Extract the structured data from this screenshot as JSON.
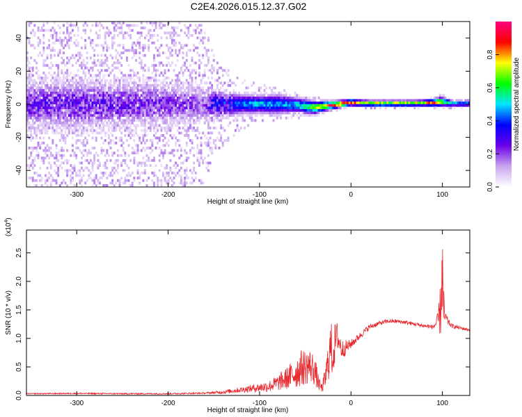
{
  "title": "C2E4.2026.015.12.37.G02",
  "chart_data": [
    {
      "type": "heatmap",
      "xlabel": "Height of straight line (km)",
      "ylabel": "Frequency (Hz)",
      "xlim": [
        -355,
        130
      ],
      "ylim": [
        -50,
        50
      ],
      "xticks": [
        -300,
        -200,
        -100,
        0,
        100
      ],
      "xtick_labels": [
        "-300",
        "-200",
        "-100",
        "0",
        "100"
      ],
      "yticks": [
        -40,
        -20,
        0,
        20,
        40
      ],
      "ytick_labels": [
        "-40",
        "-20",
        "0",
        "20",
        "40"
      ],
      "colorbar": {
        "label": "Normalized spectral amplitude",
        "range": [
          0,
          1
        ],
        "ticks": [
          0.0,
          0.2,
          0.4,
          0.6,
          0.8
        ],
        "tick_labels": [
          "0.0",
          "0.2",
          "0.4",
          "0.6",
          "0.8"
        ],
        "colors": [
          "#ffffff",
          "#c9a5ee",
          "#6a00e8",
          "#0000ff",
          "#00e5ff",
          "#00ff00",
          "#ffff00",
          "#ff0000",
          "#ff0080"
        ]
      },
      "profile": {
        "x": [
          -355,
          -300,
          -250,
          -200,
          -160,
          -150,
          -120,
          -100,
          -80,
          -60,
          -40,
          -20,
          0,
          20,
          40,
          60,
          80,
          90,
          100,
          110,
          130
        ],
        "center_hz": [
          0,
          0,
          0,
          0,
          0,
          0,
          0,
          0,
          0,
          -0.5,
          -2,
          -0.5,
          1,
          0.5,
          0.5,
          0.5,
          0.7,
          1,
          1.5,
          0.5,
          0.5
        ],
        "halfwidth_hz": [
          10,
          10,
          9.5,
          9,
          7,
          6,
          4,
          3.5,
          4,
          3,
          2.5,
          1.5,
          1.2,
          1.2,
          1.2,
          1.2,
          1.2,
          1.4,
          2,
          1.3,
          1.3
        ],
        "peak_amplitude": [
          0.24,
          0.25,
          0.24,
          0.22,
          0.2,
          0.33,
          0.42,
          0.5,
          0.45,
          0.48,
          0.7,
          0.9,
          0.85,
          0.72,
          0.7,
          0.7,
          0.72,
          0.85,
          0.6,
          0.5,
          0.45
        ],
        "scatter_halfwidth_hz": [
          50,
          50,
          50,
          50,
          48,
          30,
          15,
          12,
          10,
          8,
          6,
          4,
          3,
          3,
          3,
          3,
          3,
          3,
          5,
          3,
          3
        ]
      }
    },
    {
      "type": "line",
      "xlabel": "Height of straight line (km)",
      "ylabel": "SNR (10 * v/v)",
      "y_multiplier": "(x10",
      "y_multiplier_exp": "4",
      "y_multiplier_close": ")",
      "xlim": [
        -355,
        130
      ],
      "ylim": [
        0,
        2.9
      ],
      "xticks": [
        -300,
        -200,
        -100,
        0,
        100
      ],
      "xtick_labels": [
        "-300",
        "-200",
        "-100",
        "0",
        "100"
      ],
      "yticks": [
        0,
        0.5,
        1.0,
        1.5,
        2.0,
        2.5
      ],
      "ytick_labels": [
        "0.0",
        "0.5",
        "1.0",
        "1.5",
        "2.0",
        "2.5"
      ],
      "color": "#e8262b",
      "series": [
        {
          "name": "SNR",
          "x": [
            -355,
            -300,
            -250,
            -200,
            -160,
            -140,
            -120,
            -100,
            -90,
            -80,
            -70,
            -60,
            -55,
            -50,
            -45,
            -40,
            -35,
            -32,
            -28,
            -25,
            -22,
            -20,
            -17,
            -15,
            -12,
            -10,
            -5,
            0,
            10,
            20,
            30,
            40,
            50,
            60,
            70,
            80,
            90,
            95,
            98,
            100,
            101,
            102,
            104,
            106,
            110,
            120,
            130
          ],
          "y": [
            0.03,
            0.035,
            0.03,
            0.03,
            0.04,
            0.06,
            0.1,
            0.14,
            0.16,
            0.22,
            0.3,
            0.4,
            0.48,
            0.5,
            0.52,
            0.45,
            0.2,
            0.12,
            0.3,
            0.6,
            0.85,
            0.7,
            0.95,
            1.05,
            0.9,
            0.8,
            0.85,
            0.9,
            1.05,
            1.2,
            1.26,
            1.3,
            1.3,
            1.28,
            1.25,
            1.22,
            1.2,
            1.3,
            1.5,
            2.2,
            1.6,
            1.4,
            1.35,
            1.3,
            1.22,
            1.18,
            1.15
          ],
          "noise": [
            0.01,
            0.012,
            0.012,
            0.012,
            0.015,
            0.03,
            0.05,
            0.08,
            0.1,
            0.14,
            0.2,
            0.28,
            0.32,
            0.32,
            0.3,
            0.28,
            0.12,
            0.08,
            0.2,
            0.35,
            0.5,
            0.4,
            0.35,
            0.25,
            0.22,
            0.18,
            0.12,
            0.08,
            0.06,
            0.05,
            0.04,
            0.035,
            0.035,
            0.035,
            0.035,
            0.035,
            0.04,
            0.15,
            0.5,
            0.8,
            0.6,
            0.25,
            0.1,
            0.06,
            0.04,
            0.03,
            0.03
          ]
        }
      ]
    }
  ]
}
